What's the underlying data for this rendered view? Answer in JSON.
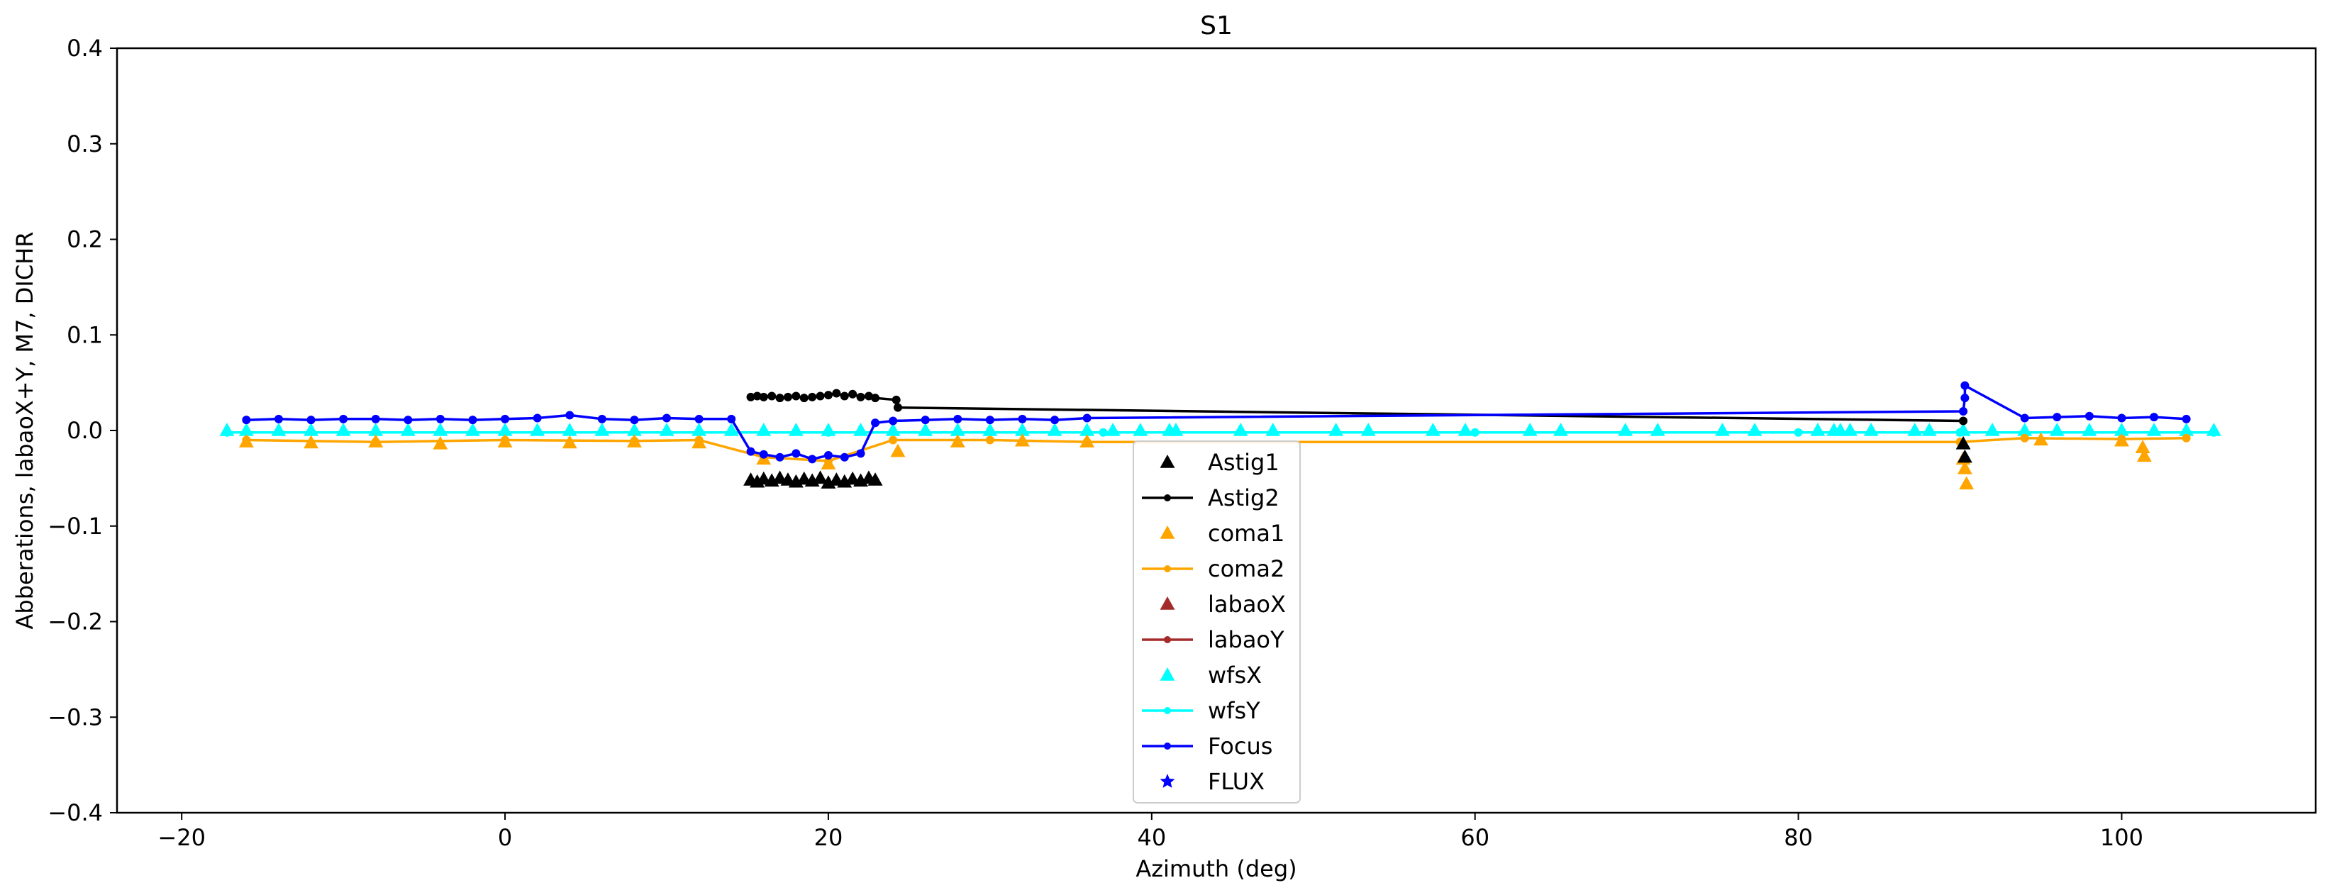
{
  "chart_data": {
    "type": "line",
    "title": "S1",
    "xlabel": "Azimuth (deg)",
    "ylabel": "Abberations, labaoX+Y, M7, DICHR",
    "xlim": [
      -24,
      112
    ],
    "ylim": [
      -0.4,
      0.4
    ],
    "xticks": [
      -20,
      0,
      20,
      40,
      60,
      80,
      100
    ],
    "yticks": [
      -0.4,
      -0.3,
      -0.2,
      -0.1,
      0.0,
      0.1,
      0.2,
      0.3,
      0.4
    ],
    "grid": false,
    "legend_placement": "lower-center",
    "series": [
      {
        "name": "Astig1",
        "color": "#000000",
        "marker": "triangle",
        "line": false,
        "x": [
          15.2,
          15.6,
          16.0,
          16.5,
          17.0,
          17.5,
          18.0,
          18.5,
          19.0,
          19.5,
          20.0,
          20.5,
          21.0,
          21.5,
          22.0,
          22.5,
          22.9,
          90.2,
          90.3
        ],
        "y": [
          -0.052,
          -0.054,
          -0.051,
          -0.053,
          -0.05,
          -0.052,
          -0.054,
          -0.051,
          -0.053,
          -0.05,
          -0.055,
          -0.052,
          -0.054,
          -0.051,
          -0.053,
          -0.05,
          -0.052,
          -0.014,
          -0.028
        ]
      },
      {
        "name": "Astig2",
        "color": "#000000",
        "marker": "dot",
        "line": true,
        "x": [
          15.2,
          15.6,
          16.0,
          16.5,
          17.0,
          17.5,
          18.0,
          18.5,
          19.0,
          19.5,
          20.0,
          20.5,
          21.0,
          21.5,
          22.0,
          22.5,
          22.9,
          24.2,
          24.3,
          90.2
        ],
        "y": [
          0.035,
          0.036,
          0.035,
          0.036,
          0.034,
          0.035,
          0.036,
          0.034,
          0.035,
          0.036,
          0.037,
          0.039,
          0.036,
          0.038,
          0.035,
          0.036,
          0.034,
          0.032,
          0.024,
          0.01
        ]
      },
      {
        "name": "coma1",
        "color": "#ffa500",
        "marker": "triangle",
        "line": false,
        "x": [
          -16,
          -12,
          -8,
          -4,
          0,
          4,
          8,
          12,
          16,
          20,
          24.3,
          28,
          32,
          36,
          90.2,
          90.3,
          90.4,
          95,
          100,
          101.3,
          101.4
        ],
        "y": [
          -0.012,
          -0.013,
          -0.012,
          -0.014,
          -0.012,
          -0.013,
          -0.012,
          -0.013,
          -0.03,
          -0.035,
          -0.022,
          -0.012,
          -0.011,
          -0.012,
          -0.03,
          -0.04,
          -0.056,
          -0.01,
          -0.011,
          -0.018,
          -0.027
        ]
      },
      {
        "name": "coma2",
        "color": "#ffa500",
        "marker": "dot",
        "line": true,
        "x": [
          -16,
          -8,
          0,
          8,
          12,
          16,
          20,
          24,
          30,
          36,
          90,
          94,
          100,
          104
        ],
        "y": [
          -0.01,
          -0.012,
          -0.01,
          -0.011,
          -0.01,
          -0.028,
          -0.032,
          -0.01,
          -0.01,
          -0.012,
          -0.012,
          -0.008,
          -0.009,
          -0.008
        ]
      },
      {
        "name": "labaoX",
        "color": "#a52a2a",
        "marker": "triangle",
        "line": false,
        "x": [],
        "y": []
      },
      {
        "name": "labaoY",
        "color": "#a52a2a",
        "marker": "dot",
        "line": true,
        "x": [],
        "y": []
      },
      {
        "name": "wfsX",
        "color": "#00ffff",
        "marker": "triangle",
        "line": false,
        "x": [
          -17.2,
          -16,
          -14,
          -12,
          -10,
          -8,
          -6,
          -4,
          -2,
          0,
          2,
          4,
          6,
          8,
          10,
          12,
          14,
          16,
          18,
          20,
          22,
          24,
          26,
          28,
          30,
          32,
          34,
          36,
          37.6,
          39.3,
          41.1,
          41.5,
          45.5,
          47.5,
          51.4,
          53.4,
          57.4,
          59.4,
          63.4,
          65.3,
          69.3,
          71.3,
          75.3,
          77.3,
          81.2,
          82.2,
          82.6,
          83.2,
          84.5,
          87.2,
          88.1,
          90.2,
          92,
          94,
          96,
          98,
          100,
          102,
          104,
          105.7
        ],
        "y": [
          0,
          0,
          0,
          0,
          0,
          0,
          0,
          0,
          0,
          0,
          0,
          0,
          0,
          0,
          0,
          0,
          0,
          0,
          0,
          0,
          0,
          0,
          0,
          0,
          0,
          0,
          0,
          0,
          0,
          0,
          0,
          0,
          0,
          0,
          0,
          0,
          0,
          0,
          0,
          0,
          0,
          0,
          0,
          0,
          0,
          0,
          0,
          0,
          0,
          0,
          0,
          0,
          0,
          0,
          0,
          0,
          0,
          0,
          0,
          0
        ]
      },
      {
        "name": "wfsY",
        "color": "#00ffff",
        "marker": "dot",
        "line": true,
        "x": [
          -17.2,
          0,
          20,
          37,
          60,
          80,
          90,
          105.7
        ],
        "y": [
          -0.002,
          -0.002,
          -0.002,
          -0.002,
          -0.002,
          -0.002,
          -0.002,
          -0.002
        ]
      },
      {
        "name": "Focus",
        "color": "#0000ff",
        "marker": "dot",
        "line": true,
        "x": [
          -16,
          -14,
          -12,
          -10,
          -8,
          -6,
          -4,
          -2,
          0,
          2,
          4,
          6,
          8,
          10,
          12,
          14,
          15.2,
          16,
          17,
          18,
          19,
          20,
          21,
          22,
          22.9,
          24,
          26,
          28,
          30,
          32,
          34,
          36,
          90.2,
          90.3,
          90.3,
          94,
          96,
          98,
          100,
          102,
          104
        ],
        "y": [
          0.011,
          0.012,
          0.011,
          0.012,
          0.012,
          0.011,
          0.012,
          0.011,
          0.012,
          0.013,
          0.016,
          0.012,
          0.011,
          0.013,
          0.012,
          0.012,
          -0.022,
          -0.025,
          -0.028,
          -0.024,
          -0.03,
          -0.026,
          -0.028,
          -0.024,
          0.008,
          0.01,
          0.011,
          0.012,
          0.011,
          0.012,
          0.011,
          0.013,
          0.02,
          0.034,
          0.047,
          0.013,
          0.014,
          0.015,
          0.013,
          0.014,
          0.012
        ]
      },
      {
        "name": "FLUX",
        "color": "#0000ff",
        "marker": "star",
        "line": false,
        "x": [],
        "y": []
      }
    ]
  }
}
